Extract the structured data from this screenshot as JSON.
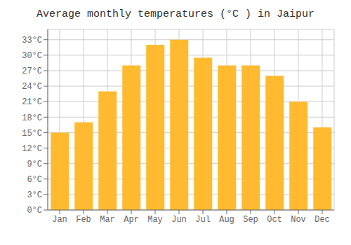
{
  "chart_data": {
    "type": "bar",
    "title": "Average monthly temperatures (°C ) in Jaipur",
    "categories": [
      "Jan",
      "Feb",
      "Mar",
      "Apr",
      "May",
      "Jun",
      "Jul",
      "Aug",
      "Sep",
      "Oct",
      "Nov",
      "Dec"
    ],
    "values": [
      15,
      17,
      23,
      28,
      32,
      33,
      29.5,
      28,
      28,
      26,
      21,
      16
    ],
    "color": "#FFBA30",
    "ylim": [
      0,
      35
    ],
    "yticks": [
      {
        "value": 0,
        "label": "0°C"
      },
      {
        "value": 3,
        "label": "3°C"
      },
      {
        "value": 6,
        "label": "6°C"
      },
      {
        "value": 9,
        "label": "9°C"
      },
      {
        "value": 12,
        "label": "12°C"
      },
      {
        "value": 15,
        "label": "15°C"
      },
      {
        "value": 18,
        "label": "18°C"
      },
      {
        "value": 21,
        "label": "21°C"
      },
      {
        "value": 24,
        "label": "24°C"
      },
      {
        "value": 27,
        "label": "27°C"
      },
      {
        "value": 30,
        "label": "30°C"
      },
      {
        "value": 33,
        "label": "33°C"
      }
    ],
    "grid": true
  }
}
